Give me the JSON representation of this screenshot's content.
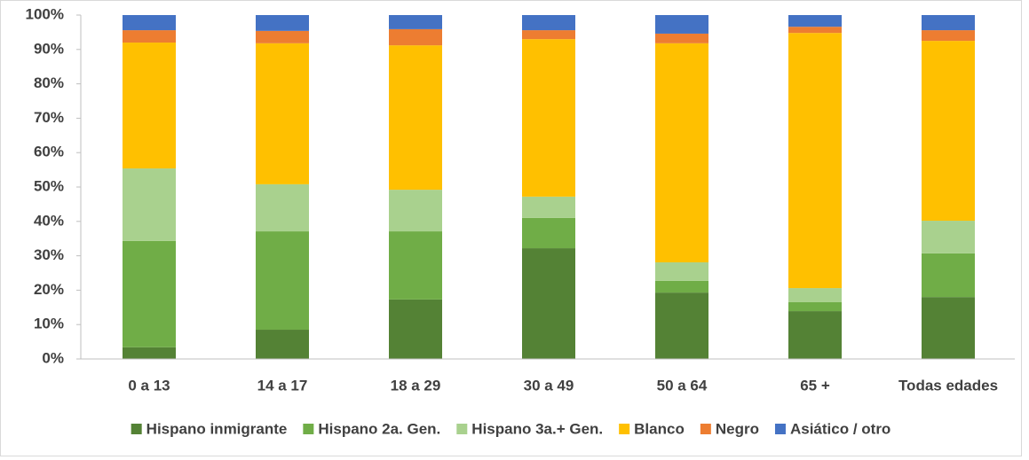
{
  "chart_data": {
    "type": "stacked_bar",
    "categories": [
      "0 a 13",
      "14 a 17",
      "18 a 29",
      "30 a 49",
      "50 a 64",
      "65 +",
      "Todas edades"
    ],
    "series": [
      {
        "name": "Hispano inmigrante",
        "color": "#548235",
        "values": [
          3.4,
          8.5,
          17.3,
          32.2,
          19.3,
          13.9,
          18.0
        ]
      },
      {
        "name": "Hispano 2a. Gen.",
        "color": "#70ad47",
        "values": [
          30.9,
          28.6,
          19.8,
          8.8,
          3.4,
          2.6,
          12.7
        ]
      },
      {
        "name": "Hispano 3a.+ Gen.",
        "color": "#a9d18e",
        "values": [
          21.1,
          13.7,
          12.1,
          6.2,
          5.4,
          4.1,
          9.5
        ]
      },
      {
        "name": "Blanco",
        "color": "#ffc000",
        "values": [
          36.6,
          41.0,
          42.0,
          45.8,
          63.7,
          74.2,
          52.3
        ]
      },
      {
        "name": "Negro",
        "color": "#ed7d31",
        "values": [
          3.6,
          3.6,
          4.7,
          2.6,
          2.8,
          1.8,
          3.1
        ]
      },
      {
        "name": "Asiático / otro",
        "color": "#4472c4",
        "values": [
          4.4,
          4.6,
          4.1,
          4.4,
          5.4,
          3.4,
          4.4
        ]
      }
    ],
    "ylim": [
      0,
      100
    ],
    "yticks": [
      {
        "value": 0,
        "label": "0%"
      },
      {
        "value": 10,
        "label": "10%"
      },
      {
        "value": 20,
        "label": "20%"
      },
      {
        "value": 30,
        "label": "30%"
      },
      {
        "value": 40,
        "label": "40%"
      },
      {
        "value": 50,
        "label": "50%"
      },
      {
        "value": 60,
        "label": "60%"
      },
      {
        "value": 70,
        "label": "70%"
      },
      {
        "value": 80,
        "label": "80%"
      },
      {
        "value": 90,
        "label": "90%"
      },
      {
        "value": 100,
        "label": "100%"
      }
    ],
    "legend": "bottom"
  }
}
